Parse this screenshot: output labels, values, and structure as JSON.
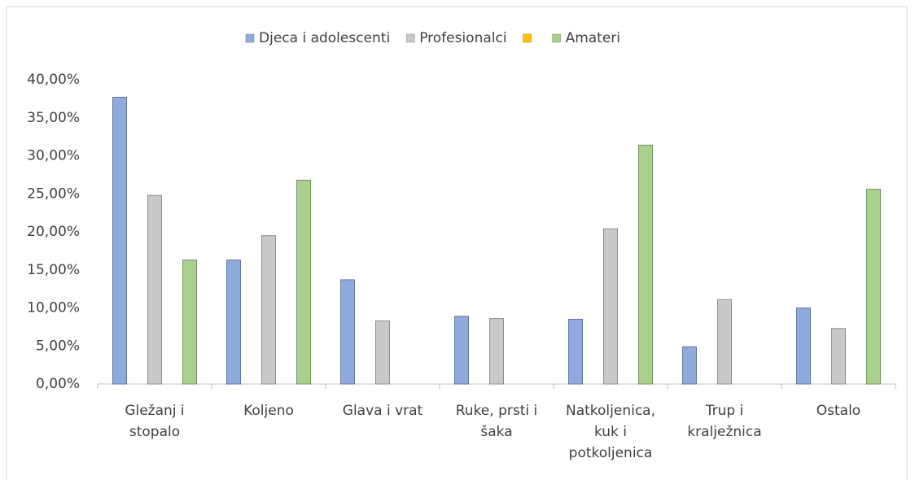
{
  "chart_data": {
    "type": "bar",
    "categories": [
      "Gležanj i stopalo",
      "Koljeno",
      "Glava i vrat",
      "Ruke, prsti i šaka",
      "Natkoljenica, kuk i potkoljenica",
      "Trup i kralježnica",
      "Ostalo"
    ],
    "series": [
      {
        "name": "Djeca i adolescenti",
        "color": "#8faadc",
        "values": [
          37.7,
          16.3,
          13.7,
          8.9,
          8.5,
          4.9,
          10.0
        ]
      },
      {
        "name": "Profesionalci",
        "color": "#c9c9c9",
        "values": [
          24.8,
          19.5,
          8.3,
          8.6,
          20.4,
          11.1,
          7.3
        ]
      },
      {
        "color": "#ffc000",
        "values": [
          null,
          null,
          null,
          null,
          null,
          null,
          null
        ]
      },
      {
        "name": "Amateri",
        "color": "#a9d18e",
        "values": [
          16.3,
          26.8,
          null,
          null,
          31.4,
          null,
          25.6
        ]
      }
    ],
    "ylim": [
      0,
      40
    ],
    "yticks": [
      {
        "value": 0,
        "label": "0,00%"
      },
      {
        "value": 5,
        "label": "5,00%"
      },
      {
        "value": 10,
        "label": "10,00%"
      },
      {
        "value": 15,
        "label": "15,00%"
      },
      {
        "value": 20,
        "label": "20,00%"
      },
      {
        "value": 25,
        "label": "25,00%"
      },
      {
        "value": 30,
        "label": "30,00%"
      },
      {
        "value": 35,
        "label": "35,00%"
      },
      {
        "value": 40,
        "label": "40,00%"
      }
    ],
    "grid": false,
    "legend": "top"
  }
}
